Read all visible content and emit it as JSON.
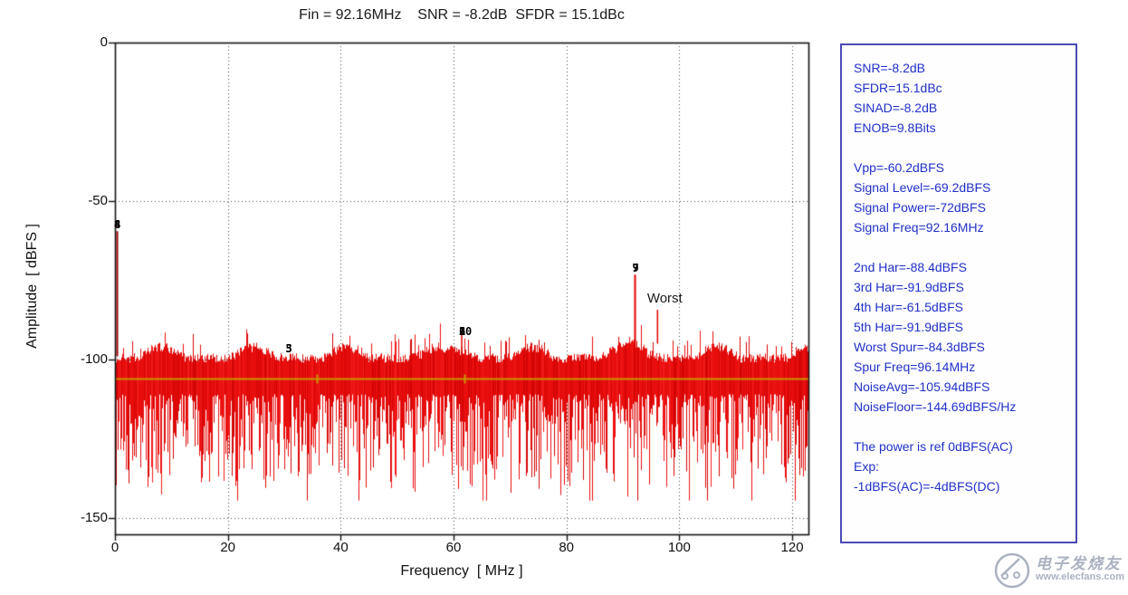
{
  "chart_data": {
    "type": "line",
    "title": "Fin = 92.16MHz    SNR = -8.2dB  SFDR = 15.1dBc",
    "xlabel": "Frequency  [ MHz ]",
    "ylabel": "Amplitude  [ dBFS ]",
    "xlim": [
      0,
      122.88
    ],
    "ylim": [
      -155,
      0
    ],
    "xticks": [
      0,
      20,
      40,
      60,
      80,
      100,
      120
    ],
    "yticks": [
      0,
      -50,
      -100,
      -150
    ],
    "grid": true,
    "series": [
      {
        "name": "FFT noise spectrum",
        "color": "#e80e0e",
        "description": "dense red noise floor, top envelope about -96 to -101 dBFS with periodic humps, downward spikes to about -145 dBFS"
      },
      {
        "name": "Noise average line",
        "color": "#c89600",
        "value_dbfs": -105.94
      }
    ],
    "key_points": {
      "snr_db": -8.2,
      "sfdr_dbc": 15.1,
      "sinad_db": -8.2,
      "enob_bits": 9.8,
      "signal": {
        "freq_mhz": 92.16,
        "level_dbfs": -69.2,
        "power_dbfs": -72,
        "vpp_dbfs": -60.2
      },
      "harmonics": [
        {
          "n": 2,
          "dbfs": -88.4
        },
        {
          "n": 3,
          "dbfs": -91.9
        },
        {
          "n": 4,
          "dbfs": -61.5
        },
        {
          "n": 5,
          "dbfs": -91.9
        }
      ],
      "worst_spur": {
        "freq_mhz": 96.14,
        "dbfs": -84.3
      },
      "noise": {
        "avg_dbfs": -105.94,
        "floor_dbfs_hz": -144.69
      }
    },
    "markers": [
      {
        "freq_mhz": 0.35,
        "dbfs": -57.5,
        "chars": [
          {
            "ch": "4",
            "dx": 0
          },
          {
            "ch": "8",
            "dx": 0
          }
        ]
      },
      {
        "freq_mhz": 30.72,
        "dbfs": -96.5,
        "chars": [
          {
            "ch": "3",
            "dx": 0
          },
          {
            "ch": "5",
            "dx": 0
          }
        ]
      },
      {
        "freq_mhz": 61.44,
        "dbfs": -91.0,
        "chars": [
          {
            "ch": "2",
            "dx": 0
          },
          {
            "ch": "6",
            "dx": 0
          },
          {
            "ch": "1",
            "dx": 0
          },
          {
            "ch": "0",
            "dx": 7
          }
        ]
      },
      {
        "freq_mhz": 92.16,
        "dbfs": -71.0,
        "chars": [
          {
            "ch": "7",
            "dx": 0
          },
          {
            "ch": "9",
            "dx": 0
          }
        ]
      }
    ],
    "annotations": [
      {
        "text": "Worst",
        "freq_mhz": 94.3,
        "dbfs": -80.5
      }
    ],
    "render": {
      "seed": 7,
      "signal_spike_top_dbfs": -73.2,
      "dc_spike_top_dbfs": -59.5,
      "hump_period_mhz": 16.4,
      "hump_center_mhz": 8.2,
      "legend_position": "none"
    }
  },
  "panel": {
    "lines": [
      "SNR=-8.2dB",
      "SFDR=15.1dBc",
      "SINAD=-8.2dB",
      "ENOB=9.8Bits",
      "",
      "Vpp=-60.2dBFS",
      "Signal Level=-69.2dBFS",
      "Signal Power=-72dBFS",
      "Signal Freq=92.16MHz",
      "",
      "2nd Har=-88.4dBFS",
      "3rd Har=-91.9dBFS",
      "4th Har=-61.5dBFS",
      "5th Har=-91.9dBFS",
      "Worst Spur=-84.3dBFS",
      "Spur Freq=96.14MHz",
      "NoiseAvg=-105.94dBFS",
      "NoiseFloor=-144.69dBFS/Hz",
      "",
      "The power is ref 0dBFS(AC)",
      "Exp:",
      "-1dBFS(AC)=-4dBFS(DC)"
    ]
  },
  "watermark": {
    "brand": "电子发烧友",
    "url": "www.elecfans.com"
  },
  "colors": {
    "spectrum_red": "#e80e0e",
    "noise_line": "#c89600",
    "panel_border": "#4a4ab4",
    "panel_text": "#2030c8",
    "marker_text": "#000000",
    "watermark": "#aab2c0",
    "grid": "#444444"
  }
}
